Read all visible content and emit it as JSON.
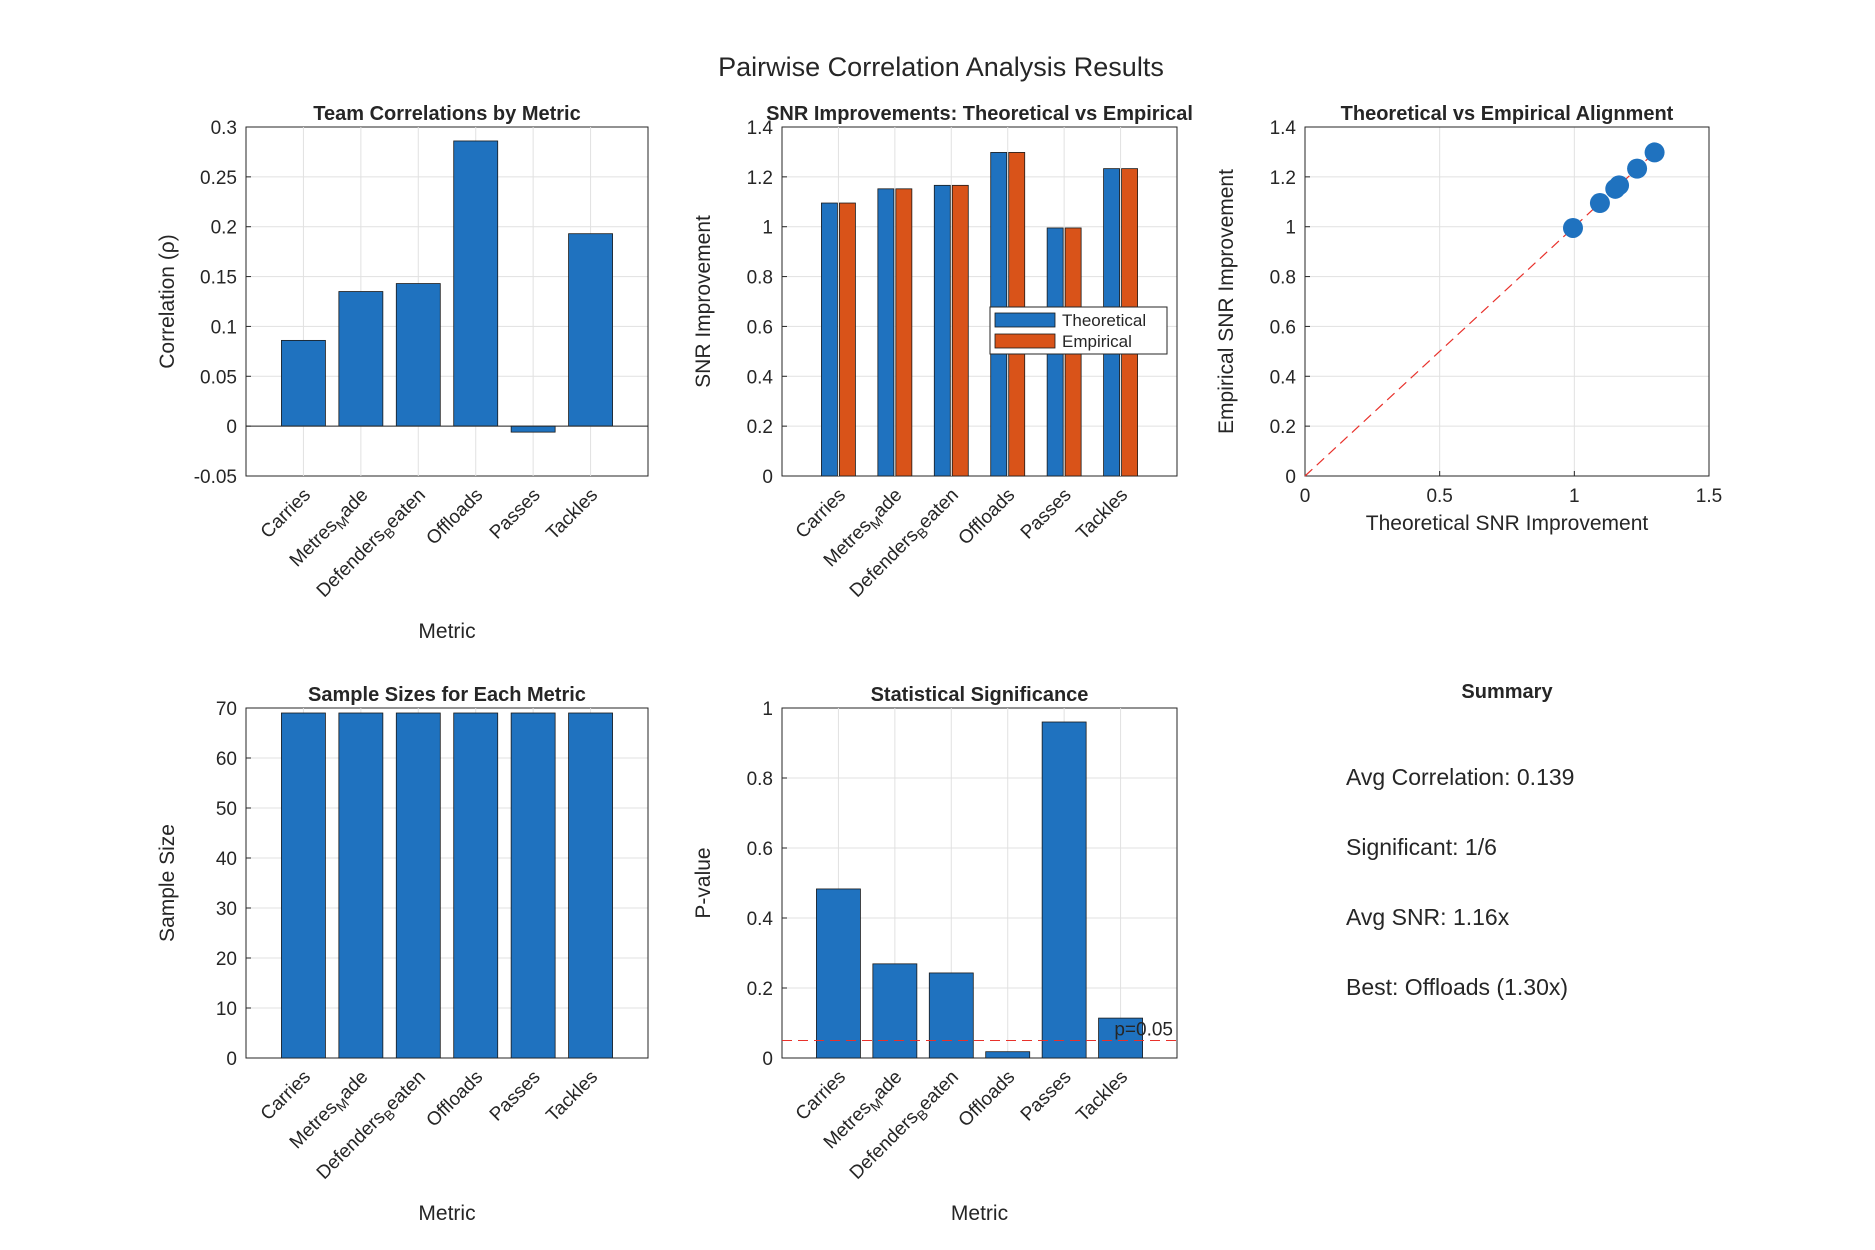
{
  "figure": {
    "title": "Pairwise Correlation Analysis Results",
    "colors": {
      "blue": "#1f72bf",
      "orange": "#d95319",
      "red": "#e8312b",
      "text": "#262626"
    }
  },
  "summary": {
    "title": "Summary",
    "lines": [
      "Avg Correlation: 0.139",
      "Significant: 1/6",
      "Avg SNR: 1.16x",
      "Best: Offloads (1.30x)"
    ]
  },
  "chart_data": [
    {
      "id": "team-correlations",
      "type": "bar",
      "title": "Team Correlations by Metric",
      "xlabel": "Metric",
      "ylabel": "Correlation (ρ)",
      "categories": [
        [
          "Carries"
        ],
        [
          "Metres",
          "M",
          "ade"
        ],
        [
          "Defenders",
          "B",
          "eaten"
        ],
        [
          "Offloads"
        ],
        [
          "Passes"
        ],
        [
          "Tackles"
        ]
      ],
      "values": [
        0.086,
        0.135,
        0.143,
        0.286,
        -0.006,
        0.193
      ],
      "ylim": [
        -0.05,
        0.3
      ],
      "yticks": [
        -0.05,
        0,
        0.05,
        0.1,
        0.15,
        0.2,
        0.25,
        0.3
      ],
      "ytick_labels": [
        "-0.05",
        "0",
        "0.05",
        "0.1",
        "0.15",
        "0.2",
        "0.25",
        "0.3"
      ],
      "grid": true
    },
    {
      "id": "snr-improvements",
      "type": "bar",
      "title": "SNR Improvements: Theoretical vs Empirical",
      "xlabel": "",
      "ylabel": "SNR Improvement",
      "categories": [
        [
          "Carries"
        ],
        [
          "Metres",
          "M",
          "ade"
        ],
        [
          "Defenders",
          "B",
          "eaten"
        ],
        [
          "Offloads"
        ],
        [
          "Passes"
        ],
        [
          "Tackles"
        ]
      ],
      "series": [
        {
          "name": "Theoretical",
          "values": [
            1.095,
            1.152,
            1.166,
            1.298,
            0.995,
            1.233
          ]
        },
        {
          "name": "Empirical",
          "values": [
            1.095,
            1.152,
            1.166,
            1.298,
            0.995,
            1.233
          ]
        }
      ],
      "ylim": [
        0,
        1.4
      ],
      "yticks": [
        0,
        0.2,
        0.4,
        0.6,
        0.8,
        1,
        1.2,
        1.4
      ],
      "ytick_labels": [
        "0",
        "0.2",
        "0.4",
        "0.6",
        "0.8",
        "1",
        "1.2",
        "1.4"
      ],
      "legend_placement": "center-right",
      "grid": true
    },
    {
      "id": "alignment",
      "type": "scatter",
      "title": "Theoretical vs Empirical Alignment",
      "xlabel": "Theoretical SNR Improvement",
      "ylabel": "Empirical SNR Improvement",
      "x": [
        0.995,
        1.095,
        1.152,
        1.166,
        1.233,
        1.298
      ],
      "y": [
        0.995,
        1.095,
        1.152,
        1.166,
        1.233,
        1.298
      ],
      "xlim": [
        0,
        1.5
      ],
      "ylim": [
        0,
        1.4
      ],
      "xticks": [
        0,
        0.5,
        1,
        1.5
      ],
      "xtick_labels": [
        "0",
        "0.5",
        "1",
        "1.5"
      ],
      "yticks": [
        0,
        0.2,
        0.4,
        0.6,
        0.8,
        1,
        1.2,
        1.4
      ],
      "ytick_labels": [
        "0",
        "0.2",
        "0.4",
        "0.6",
        "0.8",
        "1",
        "1.2",
        "1.4"
      ],
      "reference_line": {
        "x": [
          0,
          1.298
        ],
        "y": [
          0,
          1.298
        ],
        "style": "dashed red"
      },
      "grid": true
    },
    {
      "id": "sample-sizes",
      "type": "bar",
      "title": "Sample Sizes for Each Metric",
      "xlabel": "Metric",
      "ylabel": "Sample Size",
      "categories": [
        [
          "Carries"
        ],
        [
          "Metres",
          "M",
          "ade"
        ],
        [
          "Defenders",
          "B",
          "eaten"
        ],
        [
          "Offloads"
        ],
        [
          "Passes"
        ],
        [
          "Tackles"
        ]
      ],
      "values": [
        69,
        69,
        69,
        69,
        69,
        69
      ],
      "ylim": [
        0,
        70
      ],
      "yticks": [
        0,
        10,
        20,
        30,
        40,
        50,
        60,
        70
      ],
      "ytick_labels": [
        "0",
        "10",
        "20",
        "30",
        "40",
        "50",
        "60",
        "70"
      ],
      "grid": true
    },
    {
      "id": "significance",
      "type": "bar",
      "title": "Statistical Significance",
      "xlabel": "Metric",
      "ylabel": "P-value",
      "categories": [
        [
          "Carries"
        ],
        [
          "Metres",
          "M",
          "ade"
        ],
        [
          "Defenders",
          "B",
          "eaten"
        ],
        [
          "Offloads"
        ],
        [
          "Passes"
        ],
        [
          "Tackles"
        ]
      ],
      "values": [
        0.483,
        0.269,
        0.243,
        0.018,
        0.96,
        0.114
      ],
      "ylim": [
        0,
        1
      ],
      "yticks": [
        0,
        0.2,
        0.4,
        0.6,
        0.8,
        1
      ],
      "ytick_labels": [
        "0",
        "0.2",
        "0.4",
        "0.6",
        "0.8",
        "1"
      ],
      "threshold": {
        "value": 0.05,
        "label": "p=0.05"
      },
      "grid": true
    }
  ]
}
